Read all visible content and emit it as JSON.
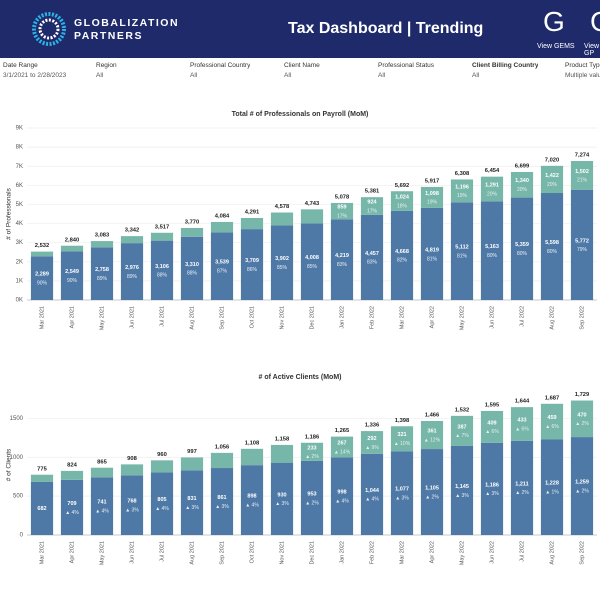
{
  "header": {
    "logo_line1": "GLOBALIZATION",
    "logo_line2": "PARTNERS",
    "title": "Tax Dashboard | Trending",
    "links": [
      "View GEMS",
      "View GP"
    ]
  },
  "filters": [
    {
      "label": "Date Range",
      "value": "3/1/2021 to 2/28/2023"
    },
    {
      "label": "Region",
      "value": "All"
    },
    {
      "label": "Professional Country",
      "value": "All"
    },
    {
      "label": "Client Name",
      "value": "All"
    },
    {
      "label": "Professional Status",
      "value": "All"
    },
    {
      "label": "Client Billing Country",
      "value": "All"
    },
    {
      "label": "Product Type",
      "value": "Multiple values"
    }
  ],
  "chart_data": [
    {
      "type": "bar",
      "stacked": true,
      "title": "Total # of Professionals on Payroll (MoM)",
      "ylabel": "# of Professionals",
      "categories": [
        "Mar 2021",
        "Apr 2021",
        "May 2021",
        "Jun 2021",
        "Jul 2021",
        "Aug 2021",
        "Sep 2021",
        "Oct 2021",
        "Nov 2021",
        "Dec 2021",
        "Jan 2022",
        "Feb 2022",
        "Mar 2022",
        "Apr 2022",
        "May 2022",
        "Jun 2022",
        "Jul 2022",
        "Aug 2022",
        "Sep 2022"
      ],
      "ylim": [
        0,
        9000
      ],
      "yticks": [
        {
          "value": 0,
          "label": "0K"
        },
        {
          "value": 1000,
          "label": "1K"
        },
        {
          "value": 2000,
          "label": "2K"
        },
        {
          "value": 3000,
          "label": "3K"
        },
        {
          "value": 4000,
          "label": "4K"
        },
        {
          "value": 5000,
          "label": "5K"
        },
        {
          "value": 6000,
          "label": "6K"
        },
        {
          "value": 7000,
          "label": "7K"
        },
        {
          "value": 8000,
          "label": "8K"
        },
        {
          "value": 9000,
          "label": "9K"
        }
      ],
      "grid": true,
      "total_labels": [
        "2,532",
        "2,840",
        "3,083",
        "3,342",
        "3,517",
        "3,770",
        "4,084",
        "4,291",
        "4,578",
        "4,743",
        "5,078",
        "5,381",
        "5,692",
        "5,917",
        "6,308",
        "6,454",
        "6,699",
        "7,020",
        "7,274"
      ],
      "series": [
        {
          "color": "#4e79a7",
          "values": [
            2289,
            2549,
            2758,
            2976,
            3106,
            3310,
            3539,
            3709,
            3902,
            4008,
            4219,
            4457,
            4668,
            4819,
            5112,
            5163,
            5359,
            5598,
            5772
          ],
          "value_labels": [
            "2,289",
            "2,549",
            "2,758",
            "2,976",
            "3,106",
            "3,310",
            "3,539",
            "3,709",
            "3,902",
            "4,008",
            "4,219",
            "4,457",
            "4,668",
            "4,819",
            "5,112",
            "5,163",
            "5,359",
            "5,598",
            "5,772"
          ],
          "sub_labels": [
            "90%",
            "90%",
            "89%",
            "89%",
            "88%",
            "88%",
            "87%",
            "86%",
            "85%",
            "85%",
            "83%",
            "83%",
            "82%",
            "81%",
            "81%",
            "80%",
            "80%",
            "80%",
            "79%"
          ]
        },
        {
          "color": "#76b7a9",
          "values": [
            243,
            291,
            325,
            366,
            411,
            460,
            545,
            582,
            676,
            735,
            859,
            924,
            1024,
            1098,
            1196,
            1291,
            1340,
            1422,
            1502
          ],
          "value_labels": [
            null,
            null,
            null,
            null,
            null,
            null,
            null,
            null,
            null,
            null,
            "859",
            "924",
            "1,024",
            "1,098",
            "1,196",
            "1,291",
            "1,340",
            "1,422",
            "1,502"
          ],
          "sub_labels": [
            null,
            null,
            null,
            null,
            null,
            null,
            null,
            null,
            null,
            null,
            "17%",
            "17%",
            "18%",
            "19%",
            "19%",
            "20%",
            "20%",
            "20%",
            "21%"
          ]
        }
      ]
    },
    {
      "type": "bar",
      "stacked": true,
      "title": "# of Active Clients (MoM)",
      "ylabel": "# of Clients",
      "categories": [
        "Mar 2021",
        "Apr 2021",
        "May 2021",
        "Jun 2021",
        "Jul 2021",
        "Aug 2021",
        "Sep 2021",
        "Oct 2021",
        "Nov 2021",
        "Dec 2021",
        "Jan 2022",
        "Feb 2022",
        "Mar 2022",
        "Apr 2022",
        "May 2022",
        "Jun 2022",
        "Jul 2022",
        "Aug 2022",
        "Sep 2022"
      ],
      "ylim": [
        0,
        1800
      ],
      "yticks": [
        0,
        500,
        1000,
        1500
      ],
      "grid": true,
      "total_labels": [
        "775",
        "824",
        "865",
        "908",
        "960",
        "997",
        "1,056",
        "1,108",
        "1,158",
        "1,186",
        "1,265",
        "1,336",
        "1,398",
        "1,466",
        "1,532",
        "1,595",
        "1,644",
        "1,687",
        "1,729"
      ],
      "series": [
        {
          "color": "#4e79a7",
          "values": [
            682,
            709,
            741,
            768,
            805,
            831,
            861,
            898,
            930,
            953,
            998,
            1044,
            1077,
            1105,
            1145,
            1186,
            1211,
            1228,
            1259
          ],
          "value_labels": [
            "682",
            "709",
            "741",
            "768",
            "805",
            "831",
            "861",
            "898",
            "930",
            "953",
            "998",
            "1,044",
            "1,077",
            "1,105",
            "1,145",
            "1,186",
            "1,211",
            "1,228",
            "1,259"
          ],
          "sub_labels": [
            null,
            "▲ 4%",
            "▲ 4%",
            "▲ 3%",
            "▲ 4%",
            "▲ 3%",
            "▲ 3%",
            "▲ 4%",
            "▲ 3%",
            "▲ 2%",
            "▲ 4%",
            "▲ 4%",
            "▲ 3%",
            "▲ 2%",
            "▲ 3%",
            "▲ 3%",
            "▲ 2%",
            "▲ 1%",
            "▲ 2%"
          ]
        },
        {
          "color": "#76b7a9",
          "values": [
            93,
            115,
            124,
            140,
            155,
            166,
            195,
            210,
            228,
            233,
            267,
            292,
            321,
            361,
            387,
            409,
            433,
            459,
            470
          ],
          "value_labels": [
            null,
            null,
            null,
            null,
            null,
            null,
            null,
            null,
            null,
            "233",
            "267",
            "292",
            "321",
            "361",
            "387",
            "409",
            "433",
            "459",
            "470"
          ],
          "sub_labels": [
            null,
            null,
            null,
            null,
            null,
            null,
            null,
            null,
            null,
            "▲ 2%",
            "▲ 14%",
            "▲ 9%",
            "▲ 10%",
            "▲ 12%",
            "▲ 7%",
            "▲ 6%",
            "▲ 6%",
            "▲ 6%",
            "▲ 2%"
          ]
        }
      ]
    }
  ]
}
